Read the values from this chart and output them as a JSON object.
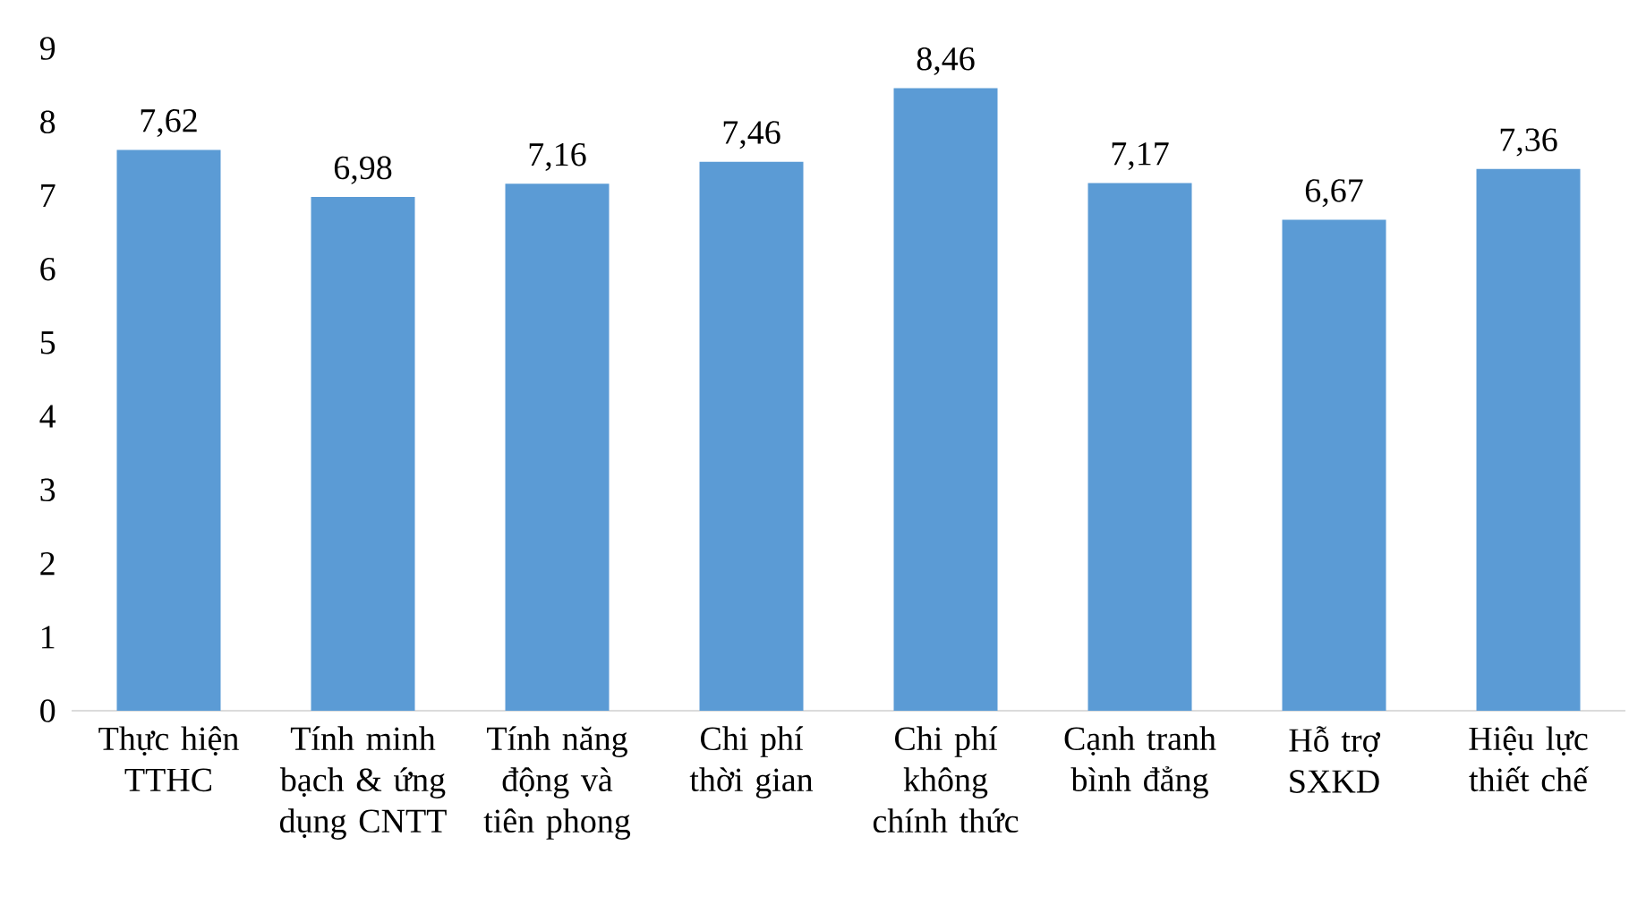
{
  "chart_data": {
    "type": "bar",
    "categories": [
      "Thực hiện TTHC",
      "Tính minh bạch & ứng dụng CNTT",
      "Tính năng động và tiên phong",
      "Chi phí thời gian",
      "Chi phí không chính thức",
      "Cạnh tranh bình đẳng",
      "Hỗ trợ SXKD",
      "Hiệu lực thiết chế"
    ],
    "values": [
      7.62,
      6.98,
      7.16,
      7.46,
      8.46,
      7.17,
      6.67,
      7.36
    ],
    "value_labels": [
      "7,62",
      "6,98",
      "7,16",
      "7,46",
      "8,46",
      "7,17",
      "6,67",
      "7,36"
    ],
    "color": "#5b9bd5",
    "ylim": [
      0,
      9
    ],
    "yticks": [
      0,
      1,
      2,
      3,
      4,
      5,
      6,
      7,
      8,
      9
    ]
  }
}
